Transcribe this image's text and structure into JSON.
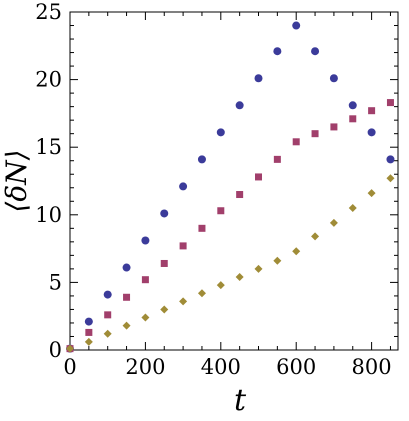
{
  "chart_data": {
    "type": "scatter",
    "title": "",
    "xlabel": "t",
    "ylabel": "⟨δN⟩",
    "xlim": [
      0,
      870
    ],
    "ylim": [
      0,
      25
    ],
    "x_ticks": [
      0,
      200,
      400,
      600,
      800
    ],
    "y_ticks": [
      0,
      5,
      10,
      15,
      20,
      25
    ],
    "grid": false,
    "legend": "none",
    "series": [
      {
        "marker": "circle",
        "color": "#3b3b9a",
        "x": [
          0,
          50,
          100,
          150,
          200,
          250,
          300,
          350,
          400,
          450,
          500,
          550,
          600,
          650,
          700,
          750,
          800,
          850
        ],
        "y": [
          0.1,
          2.1,
          4.1,
          6.1,
          8.1,
          10.1,
          12.1,
          14.1,
          16.1,
          18.1,
          20.1,
          22.1,
          24.0,
          22.1,
          20.1,
          18.1,
          16.1,
          14.1
        ]
      },
      {
        "marker": "square",
        "color": "#a13f6b",
        "x": [
          0,
          50,
          100,
          150,
          200,
          250,
          300,
          350,
          400,
          450,
          500,
          550,
          600,
          650,
          700,
          750,
          800,
          850
        ],
        "y": [
          0.1,
          1.3,
          2.6,
          3.9,
          5.2,
          6.4,
          7.7,
          9.0,
          10.3,
          11.5,
          12.8,
          14.1,
          15.4,
          16.0,
          16.5,
          17.1,
          17.7,
          18.3
        ]
      },
      {
        "marker": "diamond",
        "color": "#a08c37",
        "x": [
          0,
          50,
          100,
          150,
          200,
          250,
          300,
          350,
          400,
          450,
          500,
          550,
          600,
          650,
          700,
          750,
          800,
          850
        ],
        "y": [
          0.1,
          0.6,
          1.2,
          1.8,
          2.4,
          3.0,
          3.6,
          4.2,
          4.8,
          5.4,
          6.0,
          6.6,
          7.3,
          8.4,
          9.4,
          10.5,
          11.6,
          12.7
        ]
      }
    ]
  }
}
